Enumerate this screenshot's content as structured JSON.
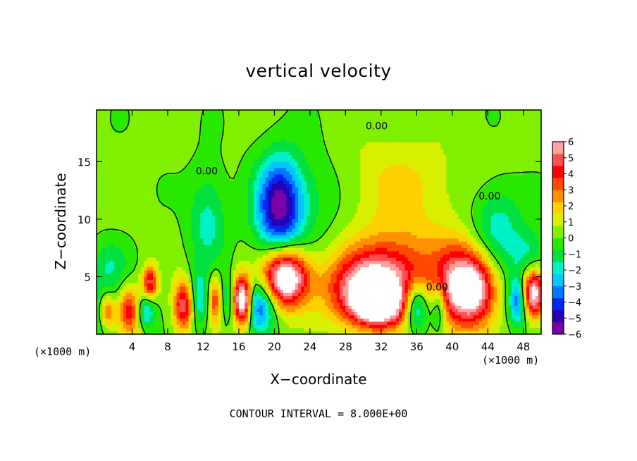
{
  "chart_data": {
    "type": "heatmap",
    "title": "vertical velocity",
    "xlabel": "X−coordinate",
    "ylabel": "Z−coordinate",
    "x_unit_label": "(×1000 m)",
    "x_unit_label_right": "(×1000 m)",
    "xlim": [
      0,
      50
    ],
    "ylim": [
      0,
      19.5
    ],
    "xticks": [
      4,
      8,
      12,
      16,
      20,
      24,
      28,
      32,
      36,
      40,
      44,
      48
    ],
    "yticks": [
      5,
      10,
      15
    ],
    "footer": "CONTOUR INTERVAL = 8.000E+00",
    "contour_labels": [
      {
        "text": "0.00",
        "x": 31.5,
        "y": 17.8
      },
      {
        "text": "0.00",
        "x": 44.2,
        "y": 11.7
      },
      {
        "text": "0.00",
        "x": 12.4,
        "y": 13.9
      },
      {
        "text": "0.00",
        "x": 38.3,
        "y": 3.8
      }
    ],
    "colorbar": {
      "ticks": [
        6,
        5,
        4,
        3,
        2,
        1,
        0,
        -1,
        -2,
        -3,
        -4,
        -5,
        -6
      ],
      "range": [
        -6,
        6
      ],
      "colors": [
        "#7a00a8",
        "#2800b4",
        "#0028f0",
        "#0078ff",
        "#00c8ff",
        "#00f0c8",
        "#00e040",
        "#28e800",
        "#80f000",
        "#d8f000",
        "#ffd000",
        "#ff9000",
        "#ff4800",
        "#ff0000",
        "#ff5050",
        "#ffa0a0"
      ]
    },
    "field_features": [
      {
        "x": 20.5,
        "z": 11.0,
        "sx": 1.8,
        "sz": 3.0,
        "amp": -5.5
      },
      {
        "x": 21.2,
        "z": 5.0,
        "sx": 1.8,
        "sz": 1.8,
        "amp": 8.0
      },
      {
        "x": 18.5,
        "z": 2.5,
        "sx": 1.2,
        "sz": 1.6,
        "amp": -4.0
      },
      {
        "x": 31.0,
        "z": 4.0,
        "sx": 3.5,
        "sz": 2.2,
        "amp": 6.5
      },
      {
        "x": 31.5,
        "z": 2.5,
        "sx": 2.0,
        "sz": 1.2,
        "amp": 5.0
      },
      {
        "x": 34.5,
        "z": 6.5,
        "sx": 4.0,
        "sz": 2.5,
        "amp": 2.0
      },
      {
        "x": 36.0,
        "z": 2.5,
        "sx": 1.0,
        "sz": 1.5,
        "amp": -4.5
      },
      {
        "x": 41.0,
        "z": 4.0,
        "sx": 2.0,
        "sz": 2.5,
        "amp": 6.0
      },
      {
        "x": 43.0,
        "z": 4.0,
        "sx": 1.5,
        "sz": 2.0,
        "amp": 3.0
      },
      {
        "x": 38.5,
        "z": 2.5,
        "sx": 0.6,
        "sz": 1.5,
        "amp": -3.0
      },
      {
        "x": 49.0,
        "z": 3.5,
        "sx": 1.0,
        "sz": 1.5,
        "amp": 7.0
      },
      {
        "x": 47.5,
        "z": 3.0,
        "sx": 0.8,
        "sz": 1.5,
        "amp": -5.0
      },
      {
        "x": 1.2,
        "z": 2.0,
        "sx": 0.8,
        "sz": 1.2,
        "amp": 6.5
      },
      {
        "x": 1.2,
        "z": 2.0,
        "sx": 1.5,
        "sz": 1.5,
        "amp": -4.5
      },
      {
        "x": 3.5,
        "z": 2.0,
        "sx": 1.0,
        "sz": 1.5,
        "amp": 5.0
      },
      {
        "x": 6.0,
        "z": 4.5,
        "sx": 0.6,
        "sz": 1.0,
        "amp": 4.5
      },
      {
        "x": 5.5,
        "z": 2.0,
        "sx": 0.7,
        "sz": 1.0,
        "amp": -3.0
      },
      {
        "x": 9.8,
        "z": 2.5,
        "sx": 0.8,
        "sz": 1.6,
        "amp": 5.0
      },
      {
        "x": 11.5,
        "z": 3.0,
        "sx": 0.8,
        "sz": 1.8,
        "amp": -2.5
      },
      {
        "x": 13.3,
        "z": 3.0,
        "sx": 0.5,
        "sz": 1.5,
        "amp": 3.5
      },
      {
        "x": 16.0,
        "z": 3.0,
        "sx": 0.7,
        "sz": 1.5,
        "amp": 6.0
      },
      {
        "x": 16.8,
        "z": 2.8,
        "sx": 0.5,
        "sz": 1.5,
        "amp": 3.5
      },
      {
        "x": 15.0,
        "z": 3.0,
        "sx": 0.6,
        "sz": 1.5,
        "amp": -2.5
      },
      {
        "x": 12.5,
        "z": 10.0,
        "sx": 1.5,
        "sz": 3.0,
        "amp": -2.0
      },
      {
        "x": 45.0,
        "z": 9.5,
        "sx": 2.0,
        "sz": 2.5,
        "amp": -2.2
      },
      {
        "x": 24.0,
        "z": 12.0,
        "sx": 3.0,
        "sz": 3.0,
        "amp": -1.2
      },
      {
        "x": 34.0,
        "z": 13.0,
        "sx": 5.0,
        "sz": 3.0,
        "amp": 1.4
      },
      {
        "x": 1.5,
        "z": 6.0,
        "sx": 1.5,
        "sz": 1.5,
        "amp": -1.5
      },
      {
        "x": 48.5,
        "z": 7.0,
        "sx": 1.5,
        "sz": 1.5,
        "amp": -1.8
      }
    ]
  }
}
